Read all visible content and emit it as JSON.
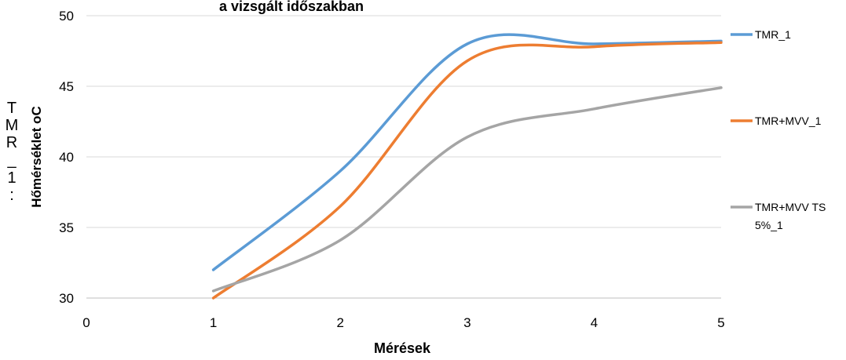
{
  "stray_text": [
    "T",
    "M",
    "R",
    "_",
    "1",
    ":"
  ],
  "chart_data": {
    "type": "line",
    "title": "a vizsgált időszakban",
    "xlabel": "Mérések",
    "ylabel": "Hőmérséklet oC",
    "xlim": [
      0,
      5
    ],
    "ylim": [
      30,
      50
    ],
    "xticks": [
      0,
      1,
      2,
      3,
      4,
      5
    ],
    "yticks": [
      30,
      35,
      40,
      45,
      50
    ],
    "grid": "horizontal",
    "legend_position": "right",
    "series": [
      {
        "name": "TMR_1",
        "color": "#5b9bd5",
        "x": [
          1,
          2,
          3,
          4,
          5
        ],
        "y": [
          32,
          39,
          48,
          48,
          48.2
        ]
      },
      {
        "name": "TMR+MVV_1",
        "color": "#ed7d31",
        "x": [
          1,
          2,
          3,
          4,
          5
        ],
        "y": [
          30,
          36.5,
          46.8,
          47.8,
          48.1
        ]
      },
      {
        "name": "TMR+MVV TS 5%_1",
        "color": "#a5a5a5",
        "x": [
          1,
          2,
          3,
          4,
          5
        ],
        "y": [
          30.5,
          34.1,
          41.4,
          43.4,
          44.9
        ]
      }
    ]
  }
}
